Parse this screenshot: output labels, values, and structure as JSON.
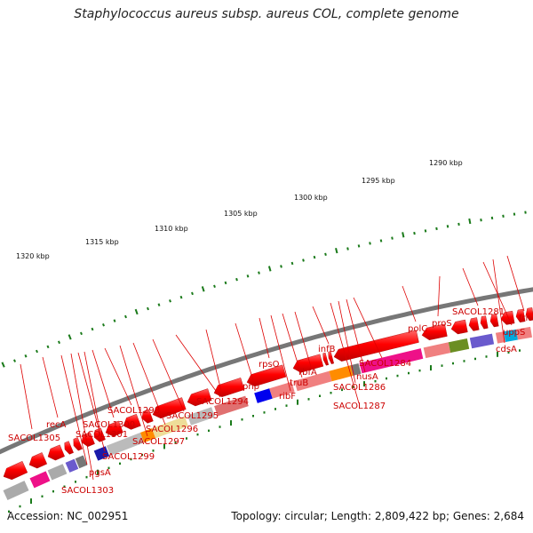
{
  "title": "Staphylococcus aureus subsp. aureus COL, complete genome",
  "footer": {
    "accession": "Accession: NC_002951",
    "info": "Topology: circular; Length: 2,809,422 bp; Genes: 2,684"
  },
  "scale_labels": [
    "1290 kbp",
    "1295 kbp",
    "1300 kbp",
    "1305 kbp",
    "1310 kbp",
    "1315 kbp",
    "1320 kbp"
  ],
  "gene_labels": [
    "SACOL1305",
    "recA",
    "SACOL1301",
    "SACOL1300",
    "SACOL1298",
    "pgsA",
    "SACOL1303",
    "SACOL1299",
    "SACOL1297",
    "SACOL1296",
    "SACOL1295",
    "SACOL1294",
    "pnp",
    "rpsO",
    "ribF",
    "truB",
    "rbfA",
    "infB",
    "SACOL1287",
    "SACOL1286",
    "nusA",
    "SACOL1284",
    "polC",
    "proS",
    "SACOL1281",
    "uppS",
    "cdsA",
    "frr"
  ],
  "colors": {
    "gene_arrow": "#ee0000",
    "backbone": "#777777",
    "label_line": "#dd0000",
    "tick": "#1a7a1a"
  }
}
